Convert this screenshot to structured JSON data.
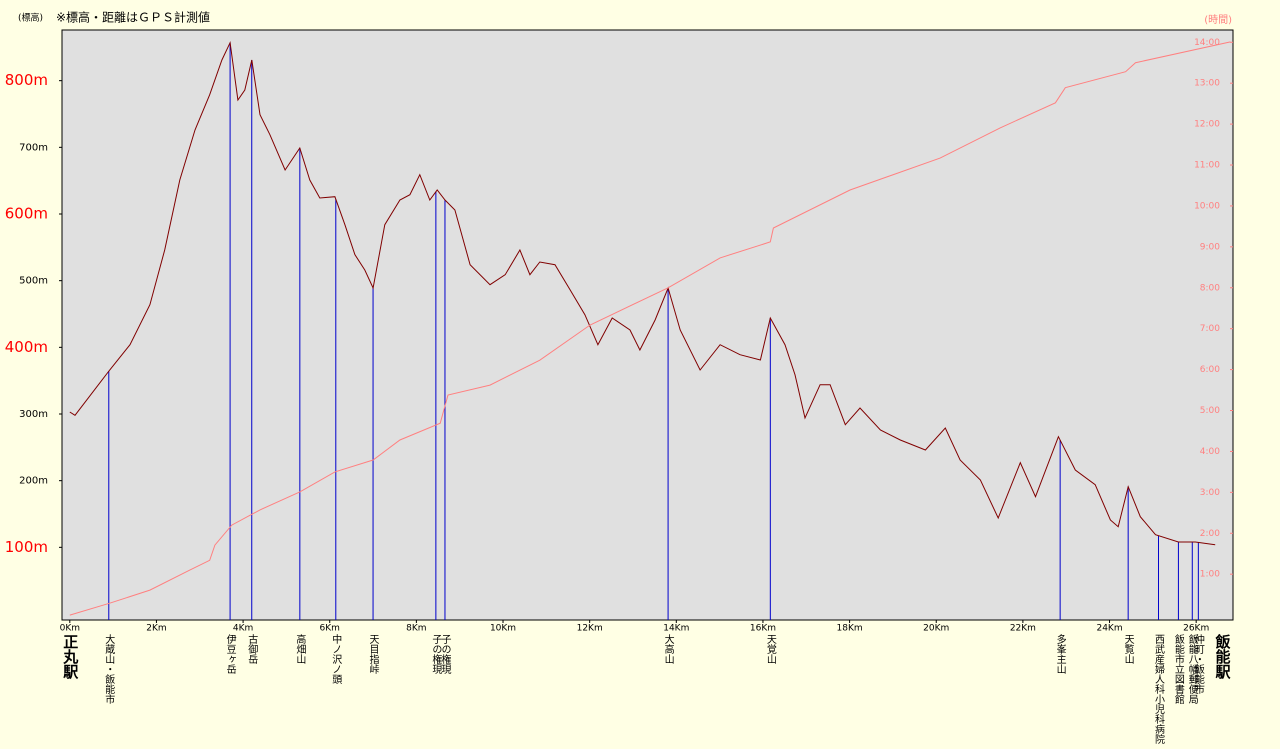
{
  "chart_data": {
    "type": "line",
    "title": "※標高・距離はＧＰＳ計測値",
    "y_label": "(標高)",
    "y2_label": "(時間)",
    "start_label": "正丸駅",
    "end_label": "飯能駅",
    "xlim": [
      -0.18,
      26.85
    ],
    "xticks": [
      {
        "value": 0,
        "label": "0Km"
      },
      {
        "value": 2,
        "label": "2Km"
      },
      {
        "value": 4,
        "label": "4Km"
      },
      {
        "value": 6,
        "label": "6Km"
      },
      {
        "value": 8,
        "label": "8Km"
      },
      {
        "value": 10,
        "label": "10Km"
      },
      {
        "value": 12,
        "label": "12Km"
      },
      {
        "value": 14,
        "label": "14Km"
      },
      {
        "value": 16,
        "label": "16Km"
      },
      {
        "value": 18,
        "label": "18Km"
      },
      {
        "value": 20,
        "label": "20Km"
      },
      {
        "value": 22,
        "label": "22Km"
      },
      {
        "value": 24,
        "label": "24Km"
      },
      {
        "value": 26,
        "label": "26Km"
      }
    ],
    "ylim": [
      -9,
      876
    ],
    "yticks": [
      {
        "value": 100,
        "label": "100m",
        "color": "#ff0000"
      },
      {
        "value": 200,
        "label": "200m",
        "color": "#000000"
      },
      {
        "value": 300,
        "label": "300m",
        "color": "#000000"
      },
      {
        "value": 400,
        "label": "400m",
        "color": "#ff0000"
      },
      {
        "value": 500,
        "label": "500m",
        "color": "#000000"
      },
      {
        "value": 600,
        "label": "600m",
        "color": "#ff0000"
      },
      {
        "value": 700,
        "label": "700m",
        "color": "#000000"
      },
      {
        "value": 800,
        "label": "800m",
        "color": "#ff0000"
      }
    ],
    "y2lim": [
      -0.12,
      14.3
    ],
    "y2ticks": [
      {
        "value": 1,
        "label": "1:00"
      },
      {
        "value": 2,
        "label": "2:00"
      },
      {
        "value": 3,
        "label": "3:00"
      },
      {
        "value": 4,
        "label": "4:00"
      },
      {
        "value": 5,
        "label": "5:00"
      },
      {
        "value": 6,
        "label": "6:00"
      },
      {
        "value": 7,
        "label": "7:00"
      },
      {
        "value": 8,
        "label": "8:00"
      },
      {
        "value": 9,
        "label": "9:00"
      },
      {
        "value": 10,
        "label": "10:00"
      },
      {
        "value": 11,
        "label": "11:00"
      },
      {
        "value": 12,
        "label": "12:00"
      },
      {
        "value": 13,
        "label": "13:00"
      },
      {
        "value": 14,
        "label": "14:00"
      }
    ],
    "series": [
      {
        "color": "#800000",
        "x": [
          0,
          0.12,
          0.92,
          1.39,
          1.85,
          2.19,
          2.54,
          2.89,
          3.23,
          3.51,
          3.7,
          3.88,
          4.04,
          4.2,
          4.39,
          4.62,
          4.97,
          5.31,
          5.54,
          5.77,
          6.12,
          6.35,
          6.58,
          6.81,
          7.0,
          7.27,
          7.62,
          7.85,
          8.08,
          8.31,
          8.48,
          8.66,
          8.89,
          9.24,
          9.7,
          10.05,
          10.39,
          10.62,
          10.85,
          11.2,
          11.55,
          11.89,
          12.19,
          12.52,
          12.93,
          13.16,
          13.51,
          13.81,
          14.09,
          14.55,
          15.01,
          15.47,
          15.94,
          16.17,
          16.51,
          16.74,
          16.97,
          17.32,
          17.55,
          17.9,
          18.24,
          18.71,
          19.17,
          19.75,
          20.21,
          20.55,
          21.02,
          21.43,
          21.94,
          22.29,
          22.82,
          23.21,
          23.67,
          24.02,
          24.2,
          24.43,
          24.71,
          25.06,
          25.59,
          25.98,
          26.44
        ],
        "values": [
          303,
          298,
          366,
          404,
          464,
          546,
          651,
          726,
          779,
          831,
          857,
          771,
          786,
          831,
          749,
          719,
          666,
          699,
          651,
          624,
          626,
          584,
          539,
          516,
          489,
          584,
          621,
          629,
          659,
          621,
          636,
          621,
          606,
          524,
          494,
          509,
          546,
          509,
          528,
          524,
          486,
          449,
          404,
          444,
          426,
          396,
          441,
          489,
          426,
          366,
          404,
          389,
          381,
          444,
          404,
          359,
          294,
          344,
          344,
          284,
          309,
          276,
          261,
          246,
          279,
          231,
          201,
          144,
          227,
          176,
          266,
          216,
          194,
          141,
          131,
          191,
          146,
          119,
          108,
          108,
          104
        ]
      },
      {
        "color": "#ff8080",
        "axis": "y2",
        "x": [
          0,
          0.92,
          1.85,
          2.77,
          3.23,
          3.35,
          3.74,
          4.39,
          5.31,
          6.12,
          7.0,
          7.62,
          8.55,
          8.73,
          9.7,
          10.85,
          12.01,
          13.81,
          15.01,
          16.17,
          16.24,
          18.01,
          20.09,
          21.48,
          22.75,
          22.98,
          24.37,
          24.6,
          26.79
        ],
        "values": [
          0,
          0.29,
          0.61,
          1.1,
          1.34,
          1.71,
          2.2,
          2.57,
          3.01,
          3.5,
          3.79,
          4.28,
          4.69,
          5.38,
          5.62,
          6.23,
          7.09,
          8.0,
          8.73,
          9.12,
          9.46,
          10.39,
          11.17,
          11.91,
          12.52,
          12.89,
          13.28,
          13.5,
          14.01
        ]
      }
    ],
    "landmarks": [
      {
        "x": 0.9,
        "label": "大蔵山・飯能市"
      },
      {
        "x": 3.7,
        "label": "伊豆ヶ岳"
      },
      {
        "x": 4.2,
        "label": "古御岳"
      },
      {
        "x": 5.31,
        "label": "高畑山"
      },
      {
        "x": 6.14,
        "label": "中ノ沢ノ頭"
      },
      {
        "x": 7.0,
        "label": "天目指峠"
      },
      {
        "x": 8.45,
        "label": "子の権現"
      },
      {
        "x": 8.66,
        "label": "子の権現"
      },
      {
        "x": 13.81,
        "label": "大高山"
      },
      {
        "x": 16.17,
        "label": "天覚山"
      },
      {
        "x": 22.86,
        "label": "多峯主山"
      },
      {
        "x": 24.43,
        "label": "天覧山"
      },
      {
        "x": 25.13,
        "label": "西武産婦人科小児科病院"
      },
      {
        "x": 25.59,
        "label": "飯能市立図書館"
      },
      {
        "x": 25.91,
        "label": "飯能八幡郵便局"
      },
      {
        "x": 26.05,
        "label": "仲町・飯能市"
      }
    ]
  }
}
